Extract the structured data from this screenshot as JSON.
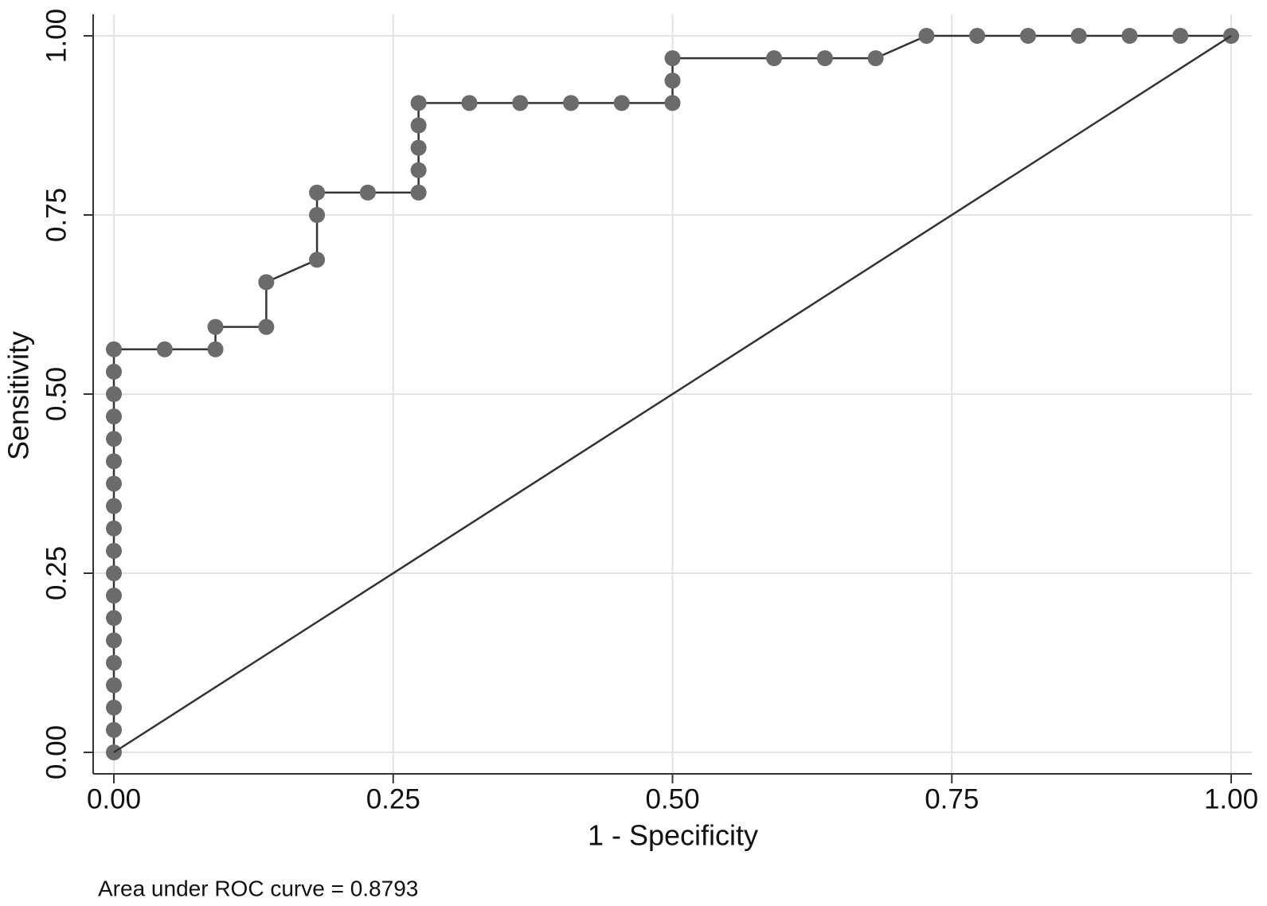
{
  "chart_data": {
    "type": "line",
    "xlabel": "1 - Specificity",
    "ylabel": "Sensitivity",
    "annotation": "Area under ROC curve = 0.8793",
    "xlim": [
      0,
      1
    ],
    "ylim": [
      0,
      1
    ],
    "xticks": [
      {
        "value": 0,
        "label": "0.00"
      },
      {
        "value": 0.25,
        "label": "0.25"
      },
      {
        "value": 0.5,
        "label": "0.50"
      },
      {
        "value": 0.75,
        "label": "0.75"
      },
      {
        "value": 1,
        "label": "1.00"
      }
    ],
    "yticks": [
      {
        "value": 0,
        "label": "0.00"
      },
      {
        "value": 0.25,
        "label": "0.25"
      },
      {
        "value": 0.5,
        "label": "0.50"
      },
      {
        "value": 0.75,
        "label": "0.75"
      },
      {
        "value": 1,
        "label": "1.00"
      }
    ],
    "grid": true,
    "series": [
      {
        "color": "#6b6b6b",
        "line_color": "#333333",
        "markers": true,
        "x": [
          0,
          0,
          0,
          0,
          0,
          0,
          0,
          0,
          0,
          0,
          0,
          0,
          0,
          0,
          0,
          0,
          0,
          0,
          0,
          0.0455,
          0.0909,
          0.0909,
          0.1364,
          0.1364,
          0.1818,
          0.1818,
          0.1818,
          0.2273,
          0.2727,
          0.2727,
          0.2727,
          0.2727,
          0.2727,
          0.3182,
          0.3636,
          0.4091,
          0.4545,
          0.5,
          0.5,
          0.5,
          0.5909,
          0.6364,
          0.6818,
          0.7273,
          0.7727,
          0.8182,
          0.8636,
          0.9091,
          0.9545,
          1
        ],
        "values": [
          0,
          0.03125,
          0.0625,
          0.09375,
          0.125,
          0.15625,
          0.1875,
          0.21875,
          0.25,
          0.28125,
          0.3125,
          0.34375,
          0.375,
          0.40625,
          0.4375,
          0.46875,
          0.5,
          0.53125,
          0.5625,
          0.5625,
          0.5625,
          0.59375,
          0.59375,
          0.65625,
          0.6875,
          0.75,
          0.78125,
          0.78125,
          0.78125,
          0.8125,
          0.84375,
          0.875,
          0.90625,
          0.90625,
          0.90625,
          0.90625,
          0.90625,
          0.90625,
          0.9375,
          0.96875,
          0.96875,
          0.96875,
          0.96875,
          1,
          1,
          1,
          1,
          1,
          1,
          1
        ]
      },
      {
        "color": "#333333",
        "line_color": "#333333",
        "markers": false,
        "x": [
          0,
          1
        ],
        "values": [
          0,
          1
        ]
      }
    ]
  }
}
